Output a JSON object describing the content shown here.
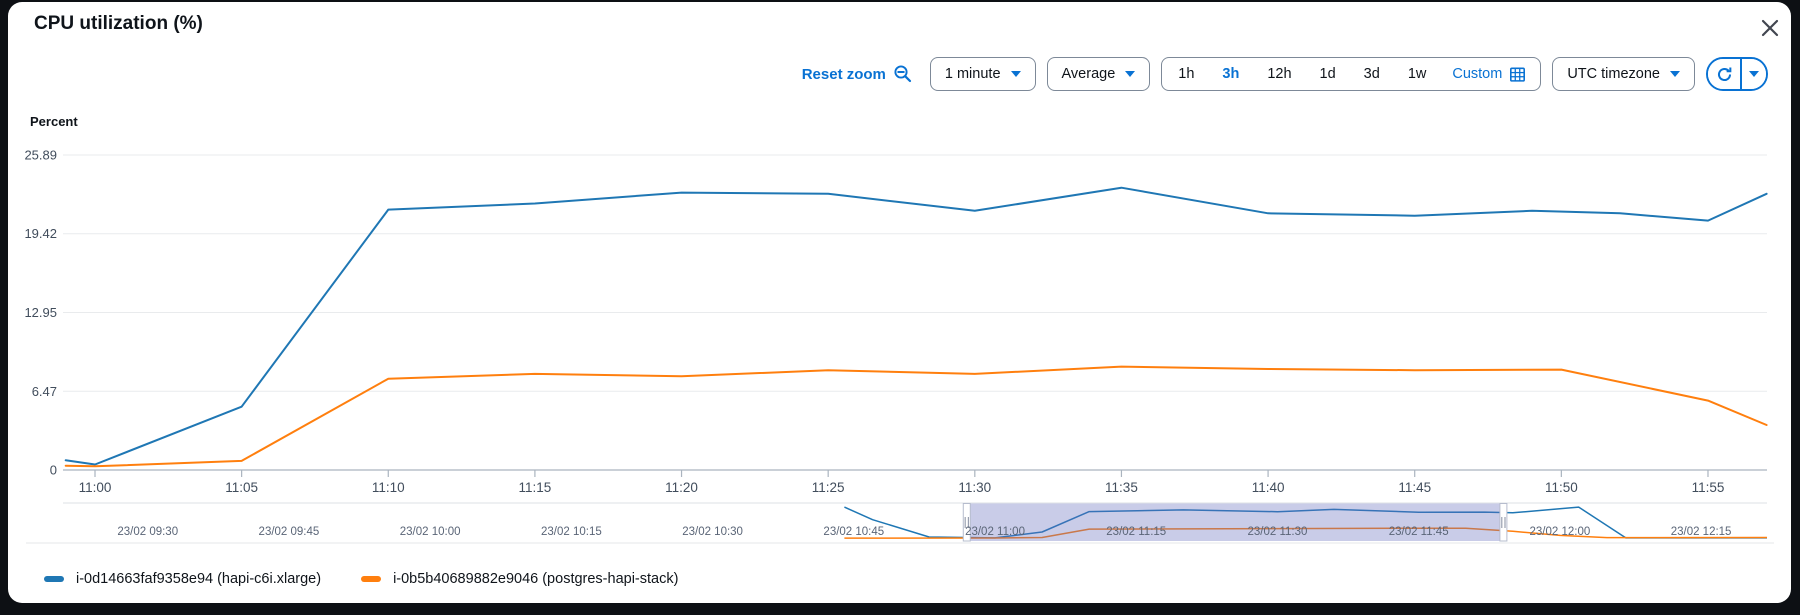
{
  "header": {
    "title": "CPU utilization (%)"
  },
  "toolbar": {
    "reset_zoom_label": "Reset zoom",
    "period_value": "1 minute",
    "statistic_value": "Average",
    "time_ranges": [
      {
        "label": "1h",
        "selected": false
      },
      {
        "label": "3h",
        "selected": true
      },
      {
        "label": "12h",
        "selected": false
      },
      {
        "label": "1d",
        "selected": false
      },
      {
        "label": "3d",
        "selected": false
      },
      {
        "label": "1w",
        "selected": false
      }
    ],
    "custom_range_label": "Custom",
    "timezone_value": "UTC timezone"
  },
  "chart_data": {
    "type": "line",
    "title": "CPU utilization (%)",
    "ylabel": "Percent",
    "xlabel": "",
    "ylim": [
      0,
      25.89
    ],
    "y_ticks": [
      25.89,
      19.42,
      12.95,
      6.47,
      0
    ],
    "x_ticks": [
      "11:00",
      "11:05",
      "11:10",
      "11:15",
      "11:20",
      "11:25",
      "11:30",
      "11:35",
      "11:40",
      "11:45",
      "11:50",
      "11:55"
    ],
    "xlim": [
      "10:59",
      "11:57"
    ],
    "grid": true,
    "legend_position": "bottom",
    "series": [
      {
        "name": "i-0d14663faf9358e94 (hapi-c6i.xlarge)",
        "color": "#1f77b4",
        "points": [
          [
            "10:59",
            0.8
          ],
          [
            "11:00",
            0.45
          ],
          [
            "11:05",
            5.2
          ],
          [
            "11:10",
            21.4
          ],
          [
            "11:15",
            21.9
          ],
          [
            "11:20",
            22.8
          ],
          [
            "11:25",
            22.7
          ],
          [
            "11:30",
            21.3
          ],
          [
            "11:35",
            23.2
          ],
          [
            "11:40",
            21.1
          ],
          [
            "11:45",
            20.9
          ],
          [
            "11:49",
            21.3
          ],
          [
            "11:52",
            21.1
          ],
          [
            "11:55",
            20.5
          ],
          [
            "11:57",
            22.7
          ]
        ]
      },
      {
        "name": "i-0b5b40689882e9046 (postgres-hapi-stack)",
        "color": "#ff7f0e",
        "points": [
          [
            "10:59",
            0.35
          ],
          [
            "11:00",
            0.3
          ],
          [
            "11:05",
            0.75
          ],
          [
            "11:10",
            7.5
          ],
          [
            "11:15",
            7.9
          ],
          [
            "11:20",
            7.7
          ],
          [
            "11:25",
            8.2
          ],
          [
            "11:30",
            7.9
          ],
          [
            "11:35",
            8.5
          ],
          [
            "11:40",
            8.3
          ],
          [
            "11:45",
            8.2
          ],
          [
            "11:50",
            8.25
          ],
          [
            "11:55",
            5.7
          ],
          [
            "11:57",
            3.7
          ]
        ]
      }
    ],
    "brush": {
      "labels": [
        "23/02 09:30",
        "23/02 09:45",
        "23/02 10:00",
        "23/02 10:15",
        "23/02 10:30",
        "23/02 10:45",
        "23/02 11:00",
        "23/02 11:15",
        "23/02 11:30",
        "23/02 11:45",
        "23/02 12:00",
        "23/02 12:15"
      ],
      "domain": [
        "09:21",
        "12:22"
      ],
      "selection": [
        "10:57",
        "11:54"
      ],
      "selection_color": "#636cbe",
      "series": [
        {
          "name": "i-0d14663faf9358e94 (hapi-c6i.xlarge)",
          "color": "#1f77b4",
          "points": [
            [
              "10:44",
              25
            ],
            [
              "10:47",
              15
            ],
            [
              "10:53",
              1.2
            ],
            [
              "11:00",
              0.5
            ],
            [
              "11:05",
              5.2
            ],
            [
              "11:10",
              21.4
            ],
            [
              "11:20",
              22.8
            ],
            [
              "11:30",
              21.3
            ],
            [
              "11:36",
              23.2
            ],
            [
              "11:45",
              20.9
            ],
            [
              "11:52",
              21.0
            ],
            [
              "11:55",
              20.5
            ],
            [
              "12:02",
              25
            ],
            [
              "12:07",
              0.5
            ],
            [
              "12:22",
              0.5
            ]
          ]
        },
        {
          "name": "i-0b5b40689882e9046 (postgres-hapi-stack)",
          "color": "#ff7f0e",
          "points": [
            [
              "10:44",
              0.3
            ],
            [
              "11:00",
              0.4
            ],
            [
              "11:05",
              0.8
            ],
            [
              "11:10",
              7.5
            ],
            [
              "11:30",
              7.9
            ],
            [
              "11:45",
              8.2
            ],
            [
              "11:50",
              8.2
            ],
            [
              "11:55",
              5.7
            ],
            [
              "12:00",
              2.5
            ],
            [
              "12:05",
              0.7
            ],
            [
              "12:22",
              0.8
            ]
          ]
        }
      ]
    }
  },
  "legend": {
    "items": [
      {
        "label": "i-0d14663faf9358e94 (hapi-c6i.xlarge)",
        "color": "#1f77b4"
      },
      {
        "label": "i-0b5b40689882e9046 (postgres-hapi-stack)",
        "color": "#ff7f0e"
      }
    ]
  },
  "colors": {
    "accent": "#0972d3",
    "text": "#0f141a",
    "secondary_text": "#414d5c",
    "grid": "#e9ebed",
    "axis": "#aab4bf",
    "card_bg": "#ffffff",
    "page_bg": "#0d1014"
  }
}
